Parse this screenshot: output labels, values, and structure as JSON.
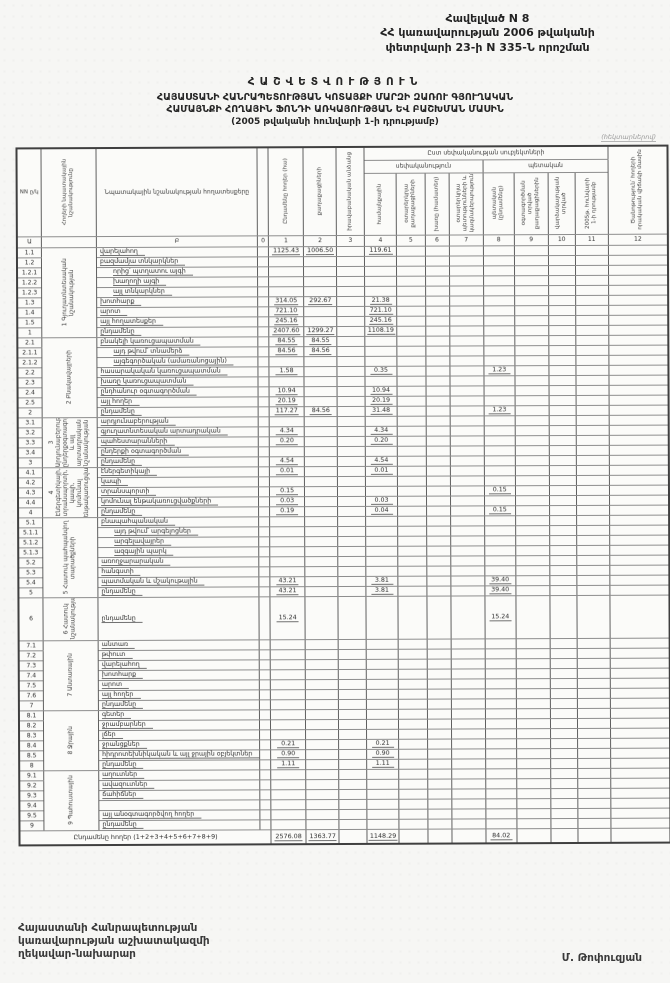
{
  "page": {
    "appendix": [
      "Հավելված N 8",
      "ՀՀ կառավարության 2006 թվականի",
      "փետրվարի 23-ի N 335-Ն որոշման"
    ],
    "title_spaced": "ՀԱՇՎԵՏՎՈՒԹՅՈՒՆ",
    "title_line1": "ՀԱՅԱՍՏԱՆԻ ՀԱՆՐԱՊԵՏՈՒԹՅԱՆ ԿՈՏԱՅՔԻ ՄԱՐԶԻ ԶԱՌՈՒ ԳՅՈՒՂԱԿԱՆ",
    "title_line2": "ՀԱՄԱՅՆՔԻ ՀՈՂԱՅԻՆ ՖՈՆԴԻ ԱՌԿԱՅՈՒԹՅԱՆ ԵՎ ԲԱՇԽՄԱՆ ՄԱՍԻՆ",
    "title_line3": "(2005 թվականի հունվարի 1-ի դրությամբ)",
    "unit_note": "(հեկտարներով)",
    "footer_lines": [
      "Հայաստանի Հանրապետության",
      "կառավարության աշխատակազմի",
      "ղեկավար-նախարար"
    ],
    "signature": "Մ. Թոփուզյան"
  },
  "table": {
    "corner_nn": "NN ը/կ",
    "section_col_header": "Հողերի նպատակային նշանակությունը",
    "col_b_header": "Նպատակային նշանակության հողատեսքերը",
    "super_header": "Ըստ սեփականության սուբյեկտների",
    "group_private": "սեփականություն",
    "group_state": "պետական",
    "columns": [
      {
        "num": "1",
        "label": "Ընդամենը հողեր (հա)"
      },
      {
        "num": "2",
        "label": "քաղաքացիների"
      },
      {
        "num": "3",
        "label": "իրավաբանական անձանց"
      },
      {
        "num": "4",
        "label": "համայնքային"
      },
      {
        "num": "5",
        "label": "օտարերկրյա քաղաքացիների"
      },
      {
        "num": "6",
        "label": "խառը (համատեղ)"
      },
      {
        "num": "7",
        "label": "օտարերկրյա պետությունների և կազմակերպությունների"
      },
      {
        "num": "8",
        "label": "պետական (ընդամենը)"
      },
      {
        "num": "9",
        "label": "օգտագործման տրված քաղաքացիներին"
      },
      {
        "num": "10",
        "label": "վարձակալության տրված"
      },
      {
        "num": "11",
        "label": "2005թ. հունվարի 1-ի դրությամբ"
      },
      {
        "num": "12",
        "label": "Ծանոթություն՝ հողերի որակական վիճակի մասին"
      }
    ],
    "number_row": [
      "Ա",
      "",
      "Բ",
      "0",
      "1",
      "2",
      "3",
      "4",
      "5",
      "6",
      "7",
      "8",
      "9",
      "10",
      "11",
      "12"
    ],
    "sections": [
      {
        "name": "1 Գյուղատնտեսական նշանակության",
        "rows": [
          {
            "nn": "1.1",
            "label": "վարելահող",
            "v": {
              "1": "1125.43",
              "2": "1006.50",
              "4": "119.61"
            }
          },
          {
            "nn": "1.2",
            "label": "բազմամյա տնկարկներ",
            "v": {}
          },
          {
            "nn": "1.2.1",
            "label": "որից՝ պտղատու այգի",
            "v": {}
          },
          {
            "nn": "1.2.2",
            "label": "խաղողի այգի",
            "v": {}
          },
          {
            "nn": "1.2.3",
            "label": "այլ տնկարկներ",
            "v": {}
          },
          {
            "nn": "1.3",
            "label": "խոտհարք",
            "v": {
              "1": "314.05",
              "2": "292.67",
              "4": "21.38"
            }
          },
          {
            "nn": "1.4",
            "label": "արոտ",
            "v": {
              "1": "721.10",
              "4": "721.10"
            }
          },
          {
            "nn": "1.5",
            "label": "այլ հողատեսքեր",
            "v": {
              "1": "245.16",
              "4": "245.16"
            }
          },
          {
            "nn": "1",
            "label": "ընդամենը",
            "v": {
              "1": "2407.60",
              "2": "1299.27",
              "4": "1108.19"
            }
          }
        ]
      },
      {
        "name": "2 Բնակավայրերի",
        "rows": [
          {
            "nn": "2.1",
            "label": "բնակելի կառուցապատման",
            "v": {
              "1": "84.55",
              "2": "84.55"
            }
          },
          {
            "nn": "2.1.1",
            "label": "այդ թվում՝ տնամերձ",
            "v": {
              "1": "84.56",
              "2": "84.56"
            }
          },
          {
            "nn": "2.1.2",
            "label": "այգեգործական (ամառանոցային)",
            "v": {}
          },
          {
            "nn": "2.2",
            "label": "հասարակական կառուցապատման",
            "v": {
              "1": "1.58",
              "4": "0.35",
              "8": "1.23"
            }
          },
          {
            "nn": "2.3",
            "label": "խառը կառուցապատման",
            "v": {}
          },
          {
            "nn": "2.4",
            "label": "ընդհանուր օգտագործման",
            "v": {
              "1": "10.94",
              "4": "10.94"
            }
          },
          {
            "nn": "2.5",
            "label": "այլ հողեր",
            "v": {
              "1": "20.19",
              "4": "20.19"
            }
          },
          {
            "nn": "2",
            "label": "ընդամենը",
            "v": {
              "1": "117.27",
              "2": "84.56",
              "4": "31.48",
              "8": "1.23"
            }
          }
        ]
      },
      {
        "name": "3 Արդյունաբերության, ընդերքօգտագործման և այլ արտադրական նշանակության",
        "rows": [
          {
            "nn": "3.1",
            "label": "արդյունաբերության",
            "v": {}
          },
          {
            "nn": "3.2",
            "label": "գյուղատնտեսական արտադրական",
            "v": {
              "1": "4.34",
              "4": "4.34"
            }
          },
          {
            "nn": "3.3",
            "label": "պահեստարանների",
            "v": {
              "1": "0.20",
              "4": "0.20"
            }
          },
          {
            "nn": "3.4",
            "label": "ընդերքի օգտագործման",
            "v": {}
          },
          {
            "nn": "3",
            "label": "ընդամենը",
            "v": {
              "1": "4.54",
              "4": "4.54"
            }
          }
        ]
      },
      {
        "name": "4 Էներգետիկայի, տրանսպորտի, կապի, կոմունալ ենթակառուցվածքների",
        "rows": [
          {
            "nn": "4.1",
            "label": "էներգետիկայի",
            "v": {
              "1": "0.01",
              "4": "0.01"
            }
          },
          {
            "nn": "4.2",
            "label": "կապի",
            "v": {}
          },
          {
            "nn": "4.3",
            "label": "տրանսպորտի",
            "v": {
              "1": "0.15",
              "8": "0.15"
            }
          },
          {
            "nn": "4.4",
            "label": "կոմունալ ենթակառուցվածքների",
            "v": {
              "1": "0.03",
              "4": "0.03"
            }
          },
          {
            "nn": "4",
            "label": "ընդամենը",
            "v": {
              "1": "0.19",
              "4": "0.04",
              "8": "0.15"
            }
          }
        ]
      },
      {
        "name": "5 Հատուկ պահպանվող տարածքների",
        "rows": [
          {
            "nn": "5.1",
            "label": "բնապահպանական",
            "v": {}
          },
          {
            "nn": "5.1.1",
            "label": "այդ թվում՝ արգելոցներ",
            "v": {}
          },
          {
            "nn": "5.1.2",
            "label": "արգելավայրեր",
            "v": {}
          },
          {
            "nn": "5.1.3",
            "label": "ազգային պարկ",
            "v": {}
          },
          {
            "nn": "5.2",
            "label": "առողջարարական",
            "v": {}
          },
          {
            "nn": "5.3",
            "label": "հանգստի",
            "v": {}
          },
          {
            "nn": "5.4",
            "label": "պատմական և մշակութային",
            "v": {
              "1": "43.21",
              "4": "3.81",
              "8": "39.40"
            }
          },
          {
            "nn": "5",
            "label": "ընդամենը",
            "v": {
              "1": "43.21",
              "4": "3.81",
              "8": "39.40"
            }
          }
        ]
      },
      {
        "name": "6 Հատուկ նշանակության",
        "rows": [
          {
            "nn": "6",
            "label": "ընդամենը",
            "v": {
              "1": "15.24",
              "8": "15.24"
            }
          }
        ]
      },
      {
        "name": "7 Անտառային",
        "rows": [
          {
            "nn": "7.1",
            "label": "անտառ",
            "v": {}
          },
          {
            "nn": "7.2",
            "label": "թփուտ",
            "v": {}
          },
          {
            "nn": "7.3",
            "label": "վարելահող",
            "v": {}
          },
          {
            "nn": "7.4",
            "label": "խոտհարք",
            "v": {}
          },
          {
            "nn": "7.5",
            "label": "արոտ",
            "v": {}
          },
          {
            "nn": "7.6",
            "label": "այլ հողեր",
            "v": {}
          },
          {
            "nn": "7",
            "label": "ընդամենը",
            "v": {}
          }
        ]
      },
      {
        "name": "8 Ջրային",
        "rows": [
          {
            "nn": "8.1",
            "label": "գետեր",
            "v": {}
          },
          {
            "nn": "8.2",
            "label": "ջրամբարներ",
            "v": {}
          },
          {
            "nn": "8.3",
            "label": "լճեր",
            "v": {}
          },
          {
            "nn": "8.4",
            "label": "ջրանցքներ",
            "v": {
              "1": "0.21",
              "4": "0.21"
            }
          },
          {
            "nn": "8.5",
            "label": "հիդրոտեխնիկական և այլ ջրային օբյեկտներ",
            "v": {
              "1": "0.90",
              "4": "0.90"
            }
          },
          {
            "nn": "8",
            "label": "ընդամենը",
            "v": {
              "1": "1.11",
              "4": "1.11"
            }
          }
        ]
      },
      {
        "name": "9 Պահուստային",
        "rows": [
          {
            "nn": "9.1",
            "label": "աղուտներ",
            "v": {}
          },
          {
            "nn": "9.2",
            "label": "ավազուտներ",
            "v": {}
          },
          {
            "nn": "9.3",
            "label": "ճահիճներ",
            "v": {}
          },
          {
            "nn": "9.4",
            "label": "",
            "v": {}
          },
          {
            "nn": "9.5",
            "label": "այլ անօգտագործվող հողեր",
            "v": {}
          },
          {
            "nn": "9",
            "label": "ընդամենը",
            "v": {}
          }
        ]
      }
    ],
    "total_row": {
      "label": "Ընդամենը հողեր (1+2+3+4+5+6+7+8+9)",
      "v": {
        "1": "2576.08",
        "2": "1363.77",
        "4": "1148.29",
        "8": "84.02"
      }
    }
  }
}
